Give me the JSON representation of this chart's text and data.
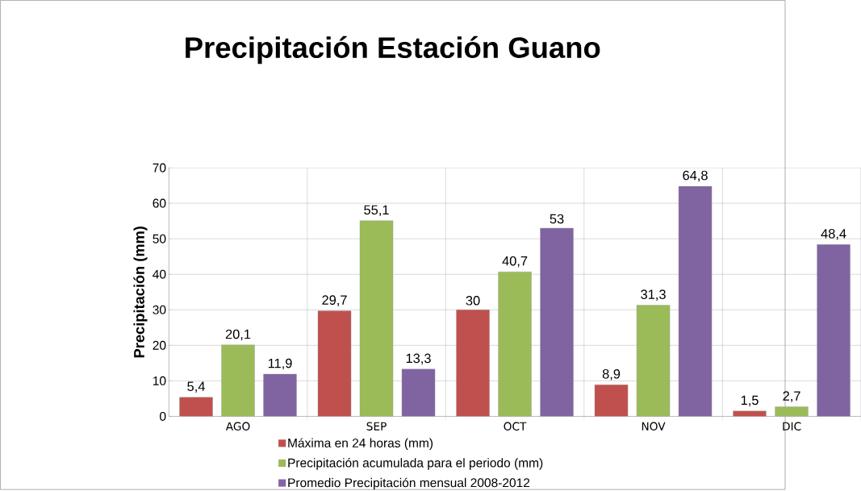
{
  "chart_data": {
    "type": "bar",
    "title": "Precipitación Estación Guano",
    "ylabel": "Precipitación (mm)",
    "categories": [
      "AGO",
      "SEP",
      "OCT",
      "NOV",
      "DIC"
    ],
    "series": [
      {
        "name": "Máxima en 24 horas (mm)",
        "color": "#c0504d",
        "values": [
          5.4,
          29.7,
          30,
          8.9,
          1.5
        ],
        "value_labels": [
          "5,4",
          "29,7",
          "30",
          "8,9",
          "1,5"
        ]
      },
      {
        "name": "Precipitación acumulada para el periodo (mm)",
        "color": "#9bbb59",
        "values": [
          20.1,
          55.1,
          40.7,
          31.3,
          2.7
        ],
        "value_labels": [
          "20,1",
          "55,1",
          "40,7",
          "31,3",
          "2,7"
        ]
      },
      {
        "name": "Promedio Precipitación mensual 2008-2012",
        "color": "#8064a2",
        "values": [
          11.9,
          13.3,
          53,
          64.8,
          48.4
        ],
        "value_labels": [
          "11,9",
          "13,3",
          "53",
          "64,8",
          "48,4"
        ]
      }
    ],
    "ylim": [
      0,
      70
    ],
    "yticks": [
      0,
      10,
      20,
      30,
      40,
      50,
      60,
      70
    ],
    "grid": true,
    "legend": "bottom"
  }
}
